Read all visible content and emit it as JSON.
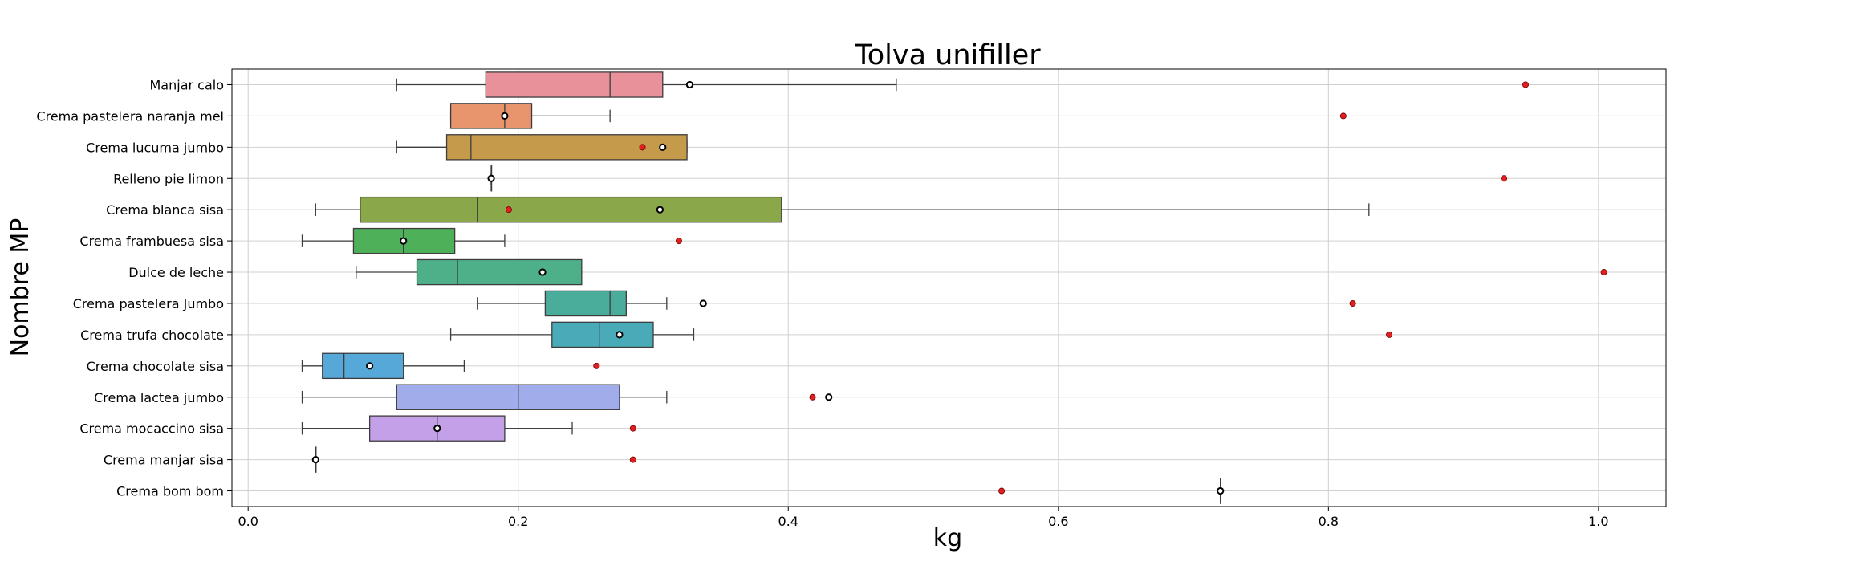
{
  "chart_data": {
    "type": "box",
    "orientation": "horizontal",
    "title": "Tolva unifiller",
    "xlabel": "kg",
    "ylabel": "Nombre MP",
    "xlim": [
      -0.012,
      1.05
    ],
    "xticks": [
      0.0,
      0.2,
      0.4,
      0.6,
      0.8,
      1.0
    ],
    "xtick_labels": [
      "0.0",
      "0.2",
      "0.4",
      "0.6",
      "0.8",
      "1.0"
    ],
    "grid": true,
    "categories": [
      {
        "name": "Manjar calo",
        "color": "#e8919b",
        "min": 0.11,
        "q1": 0.176,
        "median": 0.268,
        "q3": 0.307,
        "max": 0.48,
        "mean": 0.327,
        "red_marker": 0.946
      },
      {
        "name": "Crema pastelera naranja mel",
        "color": "#e8946c",
        "min": 0.15,
        "q1": 0.15,
        "median": 0.19,
        "q3": 0.21,
        "max": 0.268,
        "mean": 0.19,
        "red_marker": 0.811
      },
      {
        "name": "Crema lucuma jumbo",
        "color": "#c59a4a",
        "min": 0.11,
        "q1": 0.147,
        "median": 0.165,
        "q3": 0.325,
        "max": 0.325,
        "mean": 0.307,
        "red_marker": 0.292
      },
      {
        "name": "Relleno pie limon",
        "color": "#b0a44a",
        "min": 0.18,
        "q1": 0.18,
        "median": 0.18,
        "q3": 0.18,
        "max": 0.18,
        "mean": 0.18,
        "red_marker": 0.93
      },
      {
        "name": "Crema blanca sisa",
        "color": "#8aa84a",
        "min": 0.05,
        "q1": 0.083,
        "median": 0.17,
        "q3": 0.395,
        "max": 0.83,
        "mean": 0.305,
        "red_marker": 0.193
      },
      {
        "name": "Crema frambuesa sisa",
        "color": "#4fb05a",
        "min": 0.04,
        "q1": 0.078,
        "median": 0.115,
        "q3": 0.153,
        "max": 0.19,
        "mean": 0.115,
        "red_marker": 0.319
      },
      {
        "name": "Dulce de leche",
        "color": "#4db088",
        "min": 0.08,
        "q1": 0.125,
        "median": 0.155,
        "q3": 0.247,
        "max": 0.247,
        "mean": 0.218,
        "red_marker": 1.004
      },
      {
        "name": "Crema pastelera Jumbo",
        "color": "#4aac9b",
        "min": 0.17,
        "q1": 0.22,
        "median": 0.268,
        "q3": 0.28,
        "max": 0.31,
        "mean": 0.337,
        "red_marker": 0.818
      },
      {
        "name": "Crema trufa chocolate",
        "color": "#4aabb8",
        "min": 0.15,
        "q1": 0.225,
        "median": 0.26,
        "q3": 0.3,
        "max": 0.33,
        "mean": 0.275,
        "red_marker": 0.845
      },
      {
        "name": "Crema chocolate sisa",
        "color": "#55a8d8",
        "min": 0.04,
        "q1": 0.055,
        "median": 0.071,
        "q3": 0.115,
        "max": 0.16,
        "mean": 0.09,
        "red_marker": 0.258
      },
      {
        "name": "Crema lactea jumbo",
        "color": "#a1aceb",
        "min": 0.04,
        "q1": 0.11,
        "median": 0.2,
        "q3": 0.275,
        "max": 0.31,
        "mean": 0.43,
        "red_marker": 0.418
      },
      {
        "name": "Crema mocaccino sisa",
        "color": "#c3a0e8",
        "min": 0.04,
        "q1": 0.09,
        "median": 0.14,
        "q3": 0.19,
        "max": 0.24,
        "mean": 0.14,
        "red_marker": 0.285
      },
      {
        "name": "Crema manjar sisa",
        "color": "#e0a0e0",
        "min": 0.05,
        "q1": 0.05,
        "median": 0.05,
        "q3": 0.05,
        "max": 0.05,
        "mean": 0.05,
        "red_marker": 0.285
      },
      {
        "name": "Crema bom bom",
        "color": "#e8a0c8",
        "min": 0.72,
        "q1": 0.72,
        "median": 0.72,
        "q3": 0.72,
        "max": 0.72,
        "mean": 0.72,
        "red_marker": 0.558
      }
    ]
  }
}
